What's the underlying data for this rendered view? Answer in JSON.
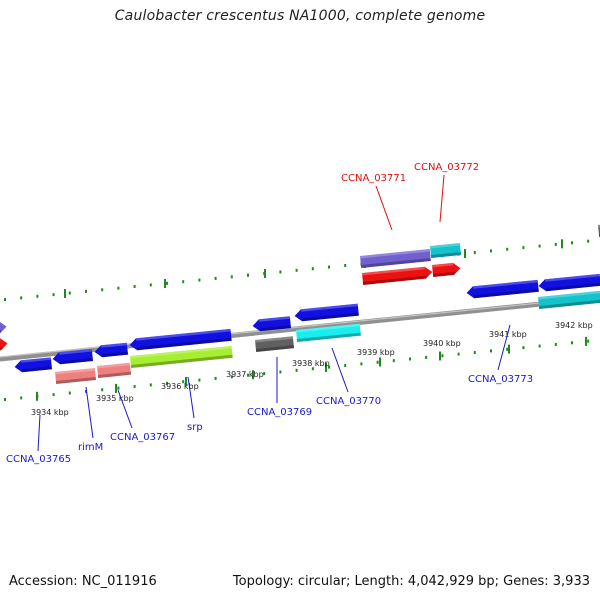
{
  "title": "Caulobacter crescentus NA1000, complete genome",
  "footer": {
    "accession": "Accession: NC_011916",
    "summary": "Topology: circular; Length: 4,042,929 bp; Genes: 3,933"
  },
  "colors": {
    "blue": "#1010e0",
    "red": "#ee1111",
    "salmon": "#f08080",
    "lime": "#a6ee30",
    "cyan": "#18eeee",
    "teal": "#12c2cc",
    "purple": "#7060d0",
    "gray": "#606060",
    "tick_green": "#1e8a1e",
    "backbone": "#8a8a8a",
    "label_blue": "#1a1acc",
    "label_red": "#dd1111"
  },
  "kbp_labels": [
    "3934 kbp",
    "3935 kbp",
    "3936 kbp",
    "3937 kbp",
    "3938 kbp",
    "3939 kbp",
    "3940 kbp",
    "3941 kbp",
    "3942 kbp"
  ],
  "gene_labels": [
    {
      "text": "CCNA_03765",
      "color": "blue"
    },
    {
      "text": "rimM",
      "color": "blue"
    },
    {
      "text": "CCNA_03767",
      "color": "blue"
    },
    {
      "text": "srp",
      "color": "blue"
    },
    {
      "text": "CCNA_03769",
      "color": "blue"
    },
    {
      "text": "CCNA_03770",
      "color": "blue"
    },
    {
      "text": "CCNA_03773",
      "color": "blue"
    },
    {
      "text": "CCNA_03771",
      "color": "red"
    },
    {
      "text": "CCNA_03772",
      "color": "red"
    }
  ]
}
